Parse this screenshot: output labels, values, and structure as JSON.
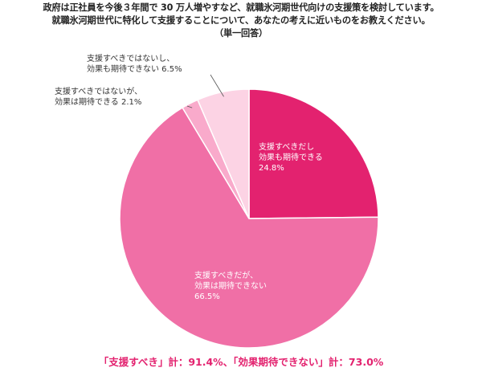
{
  "title": {
    "lines": [
      "政府は正社員を今後３年間で 30 万人増やすなど、就職氷河期世代向けの支援策を検討しています。",
      "就職氷河期世代に特化して支援することについて、あなたの考えに近いものをお教えください。",
      "（単一回答）"
    ]
  },
  "chart_data": {
    "type": "pie",
    "slices": [
      {
        "lines": [
          "支援すべきだし",
          "効果も期待できる",
          "24.8%"
        ],
        "value": 24.8,
        "color": "#e3226f"
      },
      {
        "lines": [
          "支援すべきだが、",
          "効果は期待できない",
          "66.5%"
        ],
        "value": 66.5,
        "color": "#f06fa6"
      },
      {
        "lines": [
          "支援すべきではないが、",
          "効果は期待できる 2.1%"
        ],
        "value": 2.1,
        "color": "#f9aacb"
      },
      {
        "lines": [
          "支援すべきではないし、",
          "効果も期待できない 6.5%"
        ],
        "value": 6.5,
        "color": "#fcd3e4"
      }
    ]
  },
  "summary": {
    "text": "「支援すべき」計：91.4%、「効果期待できない」計：73.0%",
    "color": "#e3226f"
  }
}
